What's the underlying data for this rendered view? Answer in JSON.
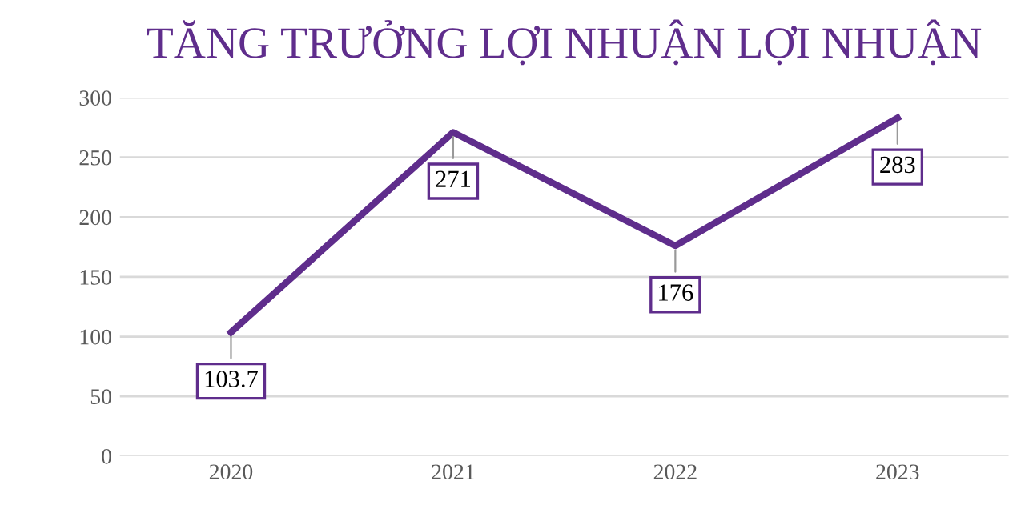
{
  "chart_data": {
    "type": "line",
    "title": "TĂNG TRƯỞNG LỢI NHUẬN LỢI NHUẬN",
    "categories": [
      "2020",
      "2021",
      "2022",
      "2023"
    ],
    "series": [
      {
        "color": "#5f2d8c",
        "values": [
          103.7,
          271,
          176,
          283
        ]
      }
    ],
    "ylim": [
      0,
      300
    ],
    "yticks": [
      0,
      50,
      100,
      150,
      200,
      250,
      300
    ],
    "grid": "y",
    "data_labels": true,
    "marker": "none",
    "line_style": "solid"
  }
}
